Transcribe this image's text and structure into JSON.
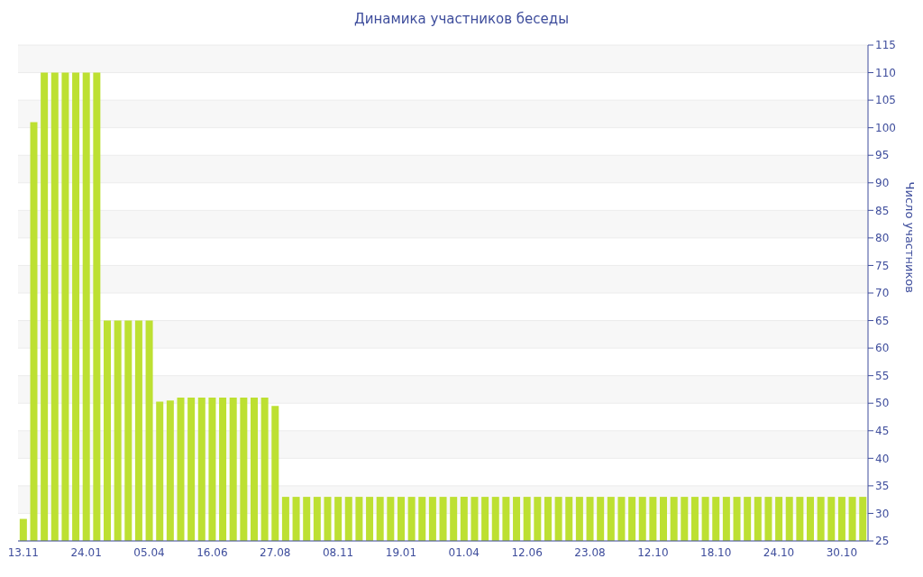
{
  "chart_data": {
    "type": "bar",
    "title": "Динамика участников беседы",
    "ylabel": "Число участников",
    "categories": [
      "13.11",
      null,
      null,
      null,
      null,
      null,
      "24.01",
      null,
      null,
      null,
      null,
      null,
      "05.04",
      null,
      null,
      null,
      null,
      null,
      "16.06",
      null,
      null,
      null,
      null,
      null,
      "27.08",
      null,
      null,
      null,
      null,
      null,
      "08.11",
      null,
      null,
      null,
      null,
      null,
      "19.01",
      null,
      null,
      null,
      null,
      null,
      "01.04",
      null,
      null,
      null,
      null,
      null,
      "12.06",
      null,
      null,
      null,
      null,
      null,
      "23.08",
      null,
      null,
      null,
      null,
      null,
      "12.10",
      null,
      null,
      null,
      null,
      null,
      "18.10",
      null,
      null,
      null,
      null,
      null,
      "24.10",
      null,
      null,
      null,
      null,
      null,
      "30.10",
      null,
      null
    ],
    "values": [
      29,
      101,
      110,
      110,
      110,
      110,
      110,
      110,
      65,
      65,
      65,
      65,
      65,
      50.3,
      50.5,
      51,
      51,
      51,
      51,
      51,
      51,
      51,
      51,
      51,
      49.5,
      33,
      33,
      33,
      33,
      33,
      33,
      33,
      33,
      33,
      33,
      33,
      33,
      33,
      33,
      33,
      33,
      33,
      33,
      33,
      33,
      33,
      33,
      33,
      33,
      33,
      33,
      33,
      33,
      33,
      33,
      33,
      33,
      33,
      33,
      33,
      33,
      33,
      33,
      33,
      33,
      33,
      33,
      33,
      33,
      33,
      33,
      33,
      33,
      33,
      33,
      33,
      33,
      33,
      33,
      33,
      33
    ],
    "color": "#bde032",
    "ylim": [
      25,
      115
    ],
    "yticks": [
      25,
      30,
      35,
      40,
      45,
      50,
      55,
      60,
      65,
      70,
      75,
      80,
      85,
      90,
      95,
      100,
      105,
      110,
      115
    ],
    "grid": "y"
  }
}
